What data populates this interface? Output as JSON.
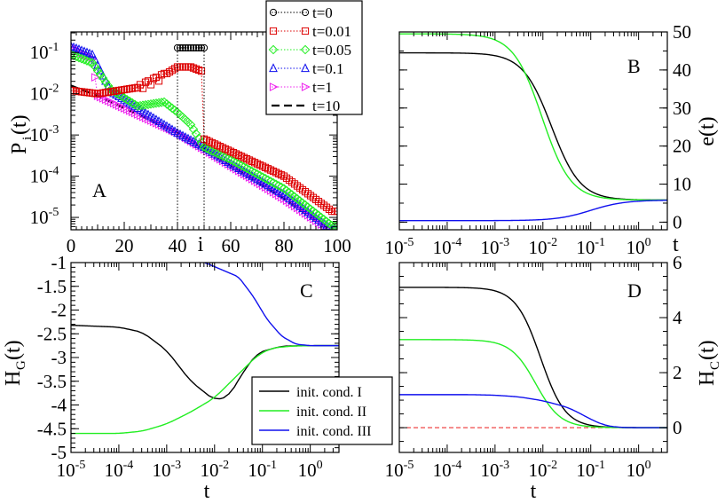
{
  "figure": "four-panel scientific figure",
  "chart_data": [
    {
      "panel": "A",
      "type": "scatter",
      "title": "",
      "panel_label": "A",
      "xlabel": "i",
      "ylabel_main": "P",
      "ylabel_sub": "i",
      "ylabel_tail": "(t)",
      "xscale": "linear",
      "yscale": "log",
      "xlim": [
        0,
        100
      ],
      "ylim_exp": [
        -5.3,
        -0.5
      ],
      "xticks": [
        0,
        20,
        40,
        60,
        80,
        100
      ],
      "xtick_labels": [
        "0",
        "20",
        "40",
        "60",
        "80",
        "100"
      ],
      "yticks_exp": [
        -1,
        -2,
        -3,
        -4,
        -5
      ],
      "ytick_base": "10",
      "legend_position": "top-right",
      "series": [
        {
          "name": "t=0",
          "color": "#000000",
          "marker": "circle",
          "desc": "delta-like: P=0.1 for i in 40..50, zero elsewhere",
          "x_range": [
            40,
            50
          ],
          "value": 0.13
        },
        {
          "name": "t=0.01",
          "color": "#dd0000",
          "marker": "square",
          "anchors_x": [
            0,
            10,
            25,
            35,
            40,
            45,
            49,
            50,
            60,
            80,
            98
          ],
          "anchors_log10y": [
            -1.92,
            -2.0,
            -1.85,
            -1.55,
            -1.35,
            -1.35,
            -1.45,
            -3.1,
            -3.4,
            -4.0,
            -4.85
          ]
        },
        {
          "name": "t=0.05",
          "color": "#22ee22",
          "marker": "diamond",
          "anchors_x": [
            0,
            8,
            15,
            25,
            35,
            40,
            45,
            50,
            60,
            80,
            98
          ],
          "anchors_log10y": [
            -1.05,
            -1.25,
            -1.9,
            -2.3,
            -2.2,
            -2.45,
            -2.75,
            -3.3,
            -3.6,
            -4.3,
            -5.2
          ]
        },
        {
          "name": "t=0.1",
          "color": "#1010ee",
          "marker": "triangle-up",
          "anchors_x": [
            0,
            8,
            15,
            25,
            40,
            50,
            60,
            80,
            98
          ],
          "anchors_log10y": [
            -0.85,
            -1.05,
            -1.95,
            -2.35,
            -2.95,
            -3.3,
            -3.7,
            -4.45,
            -5.3
          ]
        },
        {
          "name": "t=1",
          "color": "#ee22ee",
          "marker": "triangle-right",
          "anchors_x": [
            0,
            8,
            10,
            20,
            40,
            60,
            80,
            98
          ],
          "anchors_log10y": [
            -0.85,
            -1.15,
            -2.05,
            -2.35,
            -2.95,
            -3.75,
            -4.55,
            -5.35
          ]
        },
        {
          "name": "t=10",
          "color": "#000000",
          "marker": "dashed-line",
          "anchors_x": [
            0,
            10,
            20,
            40,
            60,
            80,
            98
          ],
          "anchors_log10y": [
            -1.8,
            -2.05,
            -2.35,
            -2.95,
            -3.75,
            -4.55,
            -5.35
          ]
        }
      ],
      "guides": [
        {
          "x": 40,
          "desc": "dotted vertical line from i=40 to t=0 marker level"
        },
        {
          "x": 50,
          "desc": "dotted vertical line from i=50 to t=0 marker level"
        }
      ]
    },
    {
      "panel": "B",
      "type": "line",
      "panel_label": "B",
      "xlabel": "t",
      "ylabel": "e(t)",
      "xscale": "log",
      "xlim_exp": [
        -5,
        0.6
      ],
      "ylim": [
        -2,
        50
      ],
      "xticks_exp": [
        -5,
        -4,
        -3,
        -2,
        -1,
        0
      ],
      "yticks": [
        0,
        10,
        20,
        30,
        40,
        50
      ],
      "ytick_labels": [
        "0",
        "10",
        "20",
        "30",
        "40",
        "50"
      ],
      "series": [
        {
          "name": "init. cond. I",
          "color": "#000000",
          "start": 44.5,
          "end": 5.8,
          "center_log10t": -1.82,
          "width": 0.3
        },
        {
          "name": "init. cond. II",
          "color": "#22ee22",
          "start": 49.5,
          "end": 5.8,
          "center_log10t": -2.02,
          "width": 0.3
        },
        {
          "name": "init. cond. III",
          "color": "#1010ee",
          "start": 0.4,
          "end": 5.8,
          "center_log10t": -1.0,
          "width": 0.35
        }
      ]
    },
    {
      "panel": "C",
      "type": "line",
      "panel_label": "C",
      "xlabel": "t",
      "ylabel_main": "H",
      "ylabel_sub": "G",
      "ylabel_tail": "(t)",
      "xscale": "log",
      "xlim_exp": [
        -5,
        0.6
      ],
      "ylim": [
        -5,
        -1
      ],
      "xticks_exp": [
        -5,
        -4,
        -3,
        -2,
        -1,
        0
      ],
      "yticks": [
        -1,
        -1.5,
        -2,
        -2.5,
        -3,
        -3.5,
        -4,
        -4.5,
        -5
      ],
      "ytick_labels": [
        "-1",
        "-1.5",
        "-2",
        "-2.5",
        "-3",
        "-3.5",
        "-4",
        "-4.5",
        "-5"
      ],
      "legend_position": "bottom-right",
      "legend": [
        "init. cond. I",
        "init. cond. II",
        "init. cond. III"
      ],
      "series": [
        {
          "name": "init. cond. I",
          "color": "#000000",
          "anchors_log10t": [
            -5,
            -4,
            -3.5,
            -3,
            -2.5,
            -2,
            -1.7,
            -1.4,
            -1.1,
            -0.6,
            0,
            0.6
          ],
          "anchors_y": [
            -2.32,
            -2.36,
            -2.47,
            -2.85,
            -3.5,
            -3.9,
            -3.82,
            -3.3,
            -2.9,
            -2.76,
            -2.75,
            -2.75
          ]
        },
        {
          "name": "init. cond. II",
          "color": "#22ee22",
          "anchors_log10t": [
            -5,
            -4,
            -3.5,
            -3,
            -2.5,
            -2,
            -1.5,
            -1.1,
            -0.8,
            -0.4,
            0,
            0.6
          ],
          "anchors_y": [
            -4.6,
            -4.6,
            -4.55,
            -4.4,
            -4.15,
            -3.85,
            -3.35,
            -2.95,
            -2.8,
            -2.76,
            -2.75,
            -2.75
          ]
        },
        {
          "name": "init. cond. III",
          "color": "#1010ee",
          "anchors_log10t": [
            -2.2,
            -1.5,
            -1.2,
            -0.9,
            -0.6,
            -0.3,
            0,
            0.6
          ],
          "anchors_y": [
            -1.0,
            -1.3,
            -1.7,
            -2.2,
            -2.55,
            -2.72,
            -2.75,
            -2.75
          ]
        }
      ]
    },
    {
      "panel": "D",
      "type": "line",
      "panel_label": "D",
      "xlabel": "t",
      "ylabel_main": "H",
      "ylabel_sub": "C",
      "ylabel_tail": "(t)",
      "xscale": "log",
      "xlim_exp": [
        -5,
        0.6
      ],
      "ylim": [
        -0.9,
        6
      ],
      "xticks_exp": [
        -5,
        -4,
        -3,
        -2,
        -1,
        0
      ],
      "yticks": [
        0,
        2,
        4,
        6
      ],
      "ytick_labels": [
        "0",
        "2",
        "4",
        "6"
      ],
      "reference_line": {
        "y": 0,
        "color": "#ee3333",
        "style": "dashed"
      },
      "series": [
        {
          "name": "init. cond. I",
          "color": "#000000",
          "start": 5.1,
          "end": 0,
          "center_log10t": -2.05,
          "width": 0.26
        },
        {
          "name": "init. cond. II",
          "color": "#22ee22",
          "start": 3.2,
          "end": 0,
          "center_log10t": -2.15,
          "width": 0.26
        },
        {
          "name": "init. cond. III",
          "color": "#1010ee",
          "anchors_log10t": [
            -5,
            -3.5,
            -3,
            -2.5,
            -2,
            -1.5,
            -1.2,
            -1,
            -0.7,
            -0.4,
            0,
            0.6
          ],
          "anchors_y": [
            1.2,
            1.2,
            1.18,
            1.12,
            0.98,
            0.75,
            0.5,
            0.3,
            0.08,
            0.01,
            0,
            0
          ]
        }
      ]
    }
  ]
}
